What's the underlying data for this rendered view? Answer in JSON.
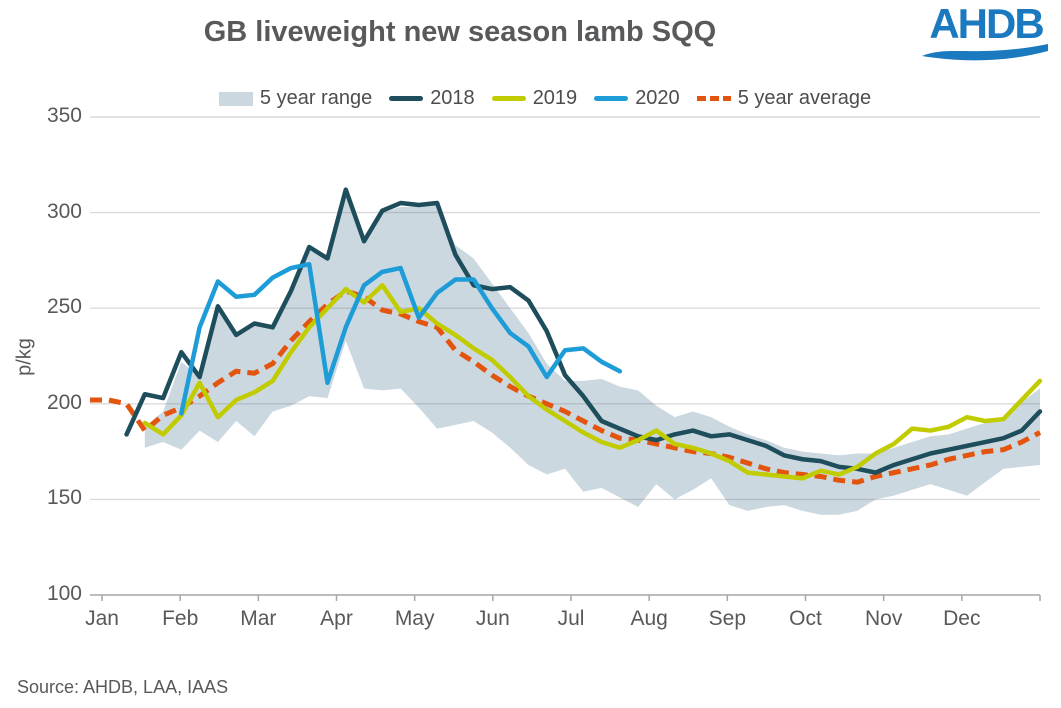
{
  "title": "GB liveweight new season lamb SQQ",
  "logo": {
    "text": "AHDB"
  },
  "source": "Source: AHDB, LAA, IAAS",
  "colors": {
    "title_text": "#58595b",
    "axis_text": "#595959",
    "legend_text": "#4d4d4d",
    "logo_blue": "#1b79c0",
    "gridline": "#d9d9d9",
    "band": "#ccd8e0",
    "y2018": "#1e4d5b",
    "y2019": "#c1cc00",
    "y2020": "#1e9cd7",
    "avg": "#e3540f"
  },
  "chart_data": {
    "type": "line",
    "title": "GB liveweight new season lamb SQQ",
    "xlabel": "",
    "ylabel": "p/kg",
    "ylim": [
      100,
      350
    ],
    "yticks": [
      100,
      150,
      200,
      250,
      300,
      350
    ],
    "months": [
      "Jan",
      "Feb",
      "Mar",
      "Apr",
      "May",
      "Jun",
      "Jul",
      "Aug",
      "Sep",
      "Oct",
      "Nov",
      "Dec"
    ],
    "weeks_per_year": 52,
    "grid": "horizontal",
    "legend_position": "top",
    "legend_order": [
      "5 year range",
      "2018",
      "2019",
      "2020",
      "5 year average"
    ],
    "band": {
      "name": "5 year range",
      "color": "#ccd8e0",
      "start_week": 4,
      "max": [
        188,
        196,
        222,
        214,
        250,
        237,
        242,
        240,
        258,
        280,
        278,
        310,
        285,
        300,
        303,
        303,
        304,
        283,
        276,
        263,
        250,
        237,
        221,
        212,
        212,
        213,
        209,
        207,
        199,
        193,
        196,
        193,
        188,
        184,
        181,
        177,
        175,
        174,
        173,
        174,
        174,
        177,
        180,
        183,
        184,
        187,
        190,
        193,
        201,
        208
      ],
      "min": [
        177,
        180,
        176,
        186,
        180,
        191,
        183,
        196,
        199,
        204,
        203,
        233,
        208,
        207,
        208,
        198,
        187,
        189,
        191,
        185,
        177,
        168,
        163,
        166,
        154,
        156,
        151,
        146,
        158,
        150,
        155,
        161,
        147,
        144,
        146,
        147,
        144,
        142,
        142,
        144,
        150,
        152,
        155,
        158,
        155,
        152,
        159,
        166,
        167,
        168
      ]
    },
    "series": [
      {
        "name": "5 year average",
        "color": "#e3540f",
        "style": "dashed",
        "width": 5,
        "start_week": 1,
        "values": [
          202,
          202,
          200,
          186,
          194,
          198,
          204,
          211,
          217,
          216,
          221,
          233,
          243,
          252,
          259,
          256,
          249,
          247,
          243,
          240,
          228,
          222,
          215,
          209,
          204,
          200,
          196,
          191,
          186,
          182,
          181,
          179,
          177,
          175,
          174,
          172,
          169,
          166,
          164,
          163,
          162,
          160,
          159,
          162,
          164,
          166,
          168,
          171,
          173,
          175,
          176,
          180,
          185
        ]
      },
      {
        "name": "2018",
        "color": "#1e4d5b",
        "style": "solid",
        "width": 4.5,
        "start_week": 3,
        "values": [
          184,
          205,
          203,
          227,
          214,
          251,
          236,
          242,
          240,
          259,
          282,
          276,
          312,
          285,
          301,
          305,
          304,
          305,
          278,
          262,
          260,
          261,
          254,
          238,
          215,
          204,
          191,
          187,
          183,
          181,
          184,
          186,
          183,
          184,
          181,
          178,
          173,
          171,
          170,
          167,
          166,
          164,
          168,
          171,
          174,
          176,
          178,
          180,
          182,
          186,
          196
        ]
      },
      {
        "name": "2019",
        "color": "#c1cc00",
        "style": "solid",
        "width": 4.5,
        "start_week": 4,
        "values": [
          190,
          184,
          194,
          211,
          193,
          202,
          206,
          212,
          227,
          240,
          250,
          260,
          253,
          262,
          248,
          250,
          242,
          236,
          229,
          223,
          214,
          204,
          197,
          191,
          185,
          180,
          177,
          181,
          186,
          179,
          177,
          174,
          170,
          164,
          163,
          162,
          161,
          165,
          163,
          167,
          174,
          179,
          187,
          186,
          188,
          193,
          191,
          192,
          202,
          212
        ]
      },
      {
        "name": "2020",
        "color": "#1e9cd7",
        "style": "solid",
        "width": 4.5,
        "start_week": 6,
        "values": [
          195,
          240,
          264,
          256,
          257,
          266,
          271,
          273,
          211,
          240,
          262,
          269,
          271,
          245,
          258,
          265,
          265,
          250,
          237,
          230,
          214,
          228,
          229,
          222,
          217
        ]
      }
    ]
  }
}
